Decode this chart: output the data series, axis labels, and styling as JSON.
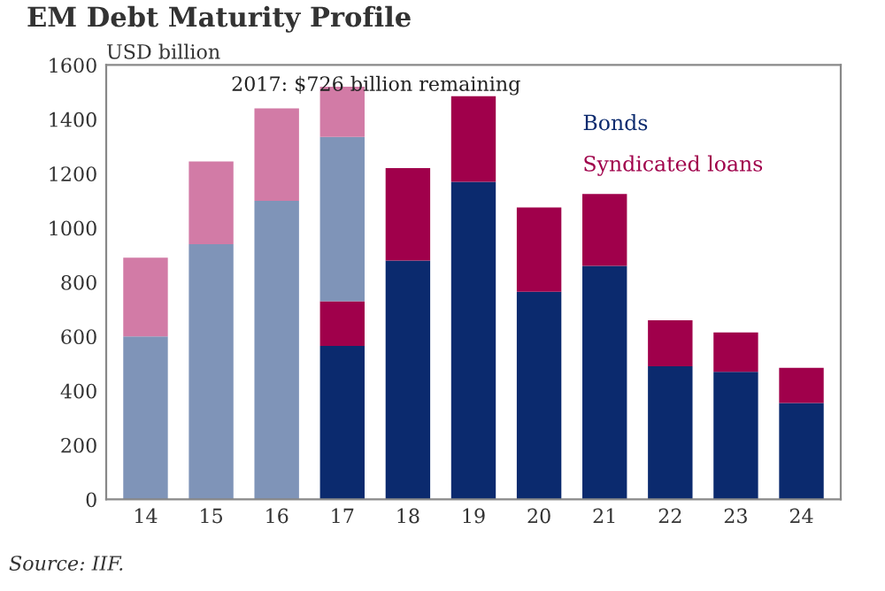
{
  "chart_data": {
    "type": "bar",
    "stacked": true,
    "title": "EM Debt Maturity Profile",
    "ylabel": "USD billion",
    "annotations": [
      "2017: $726 billion remaining",
      "Source: IIF."
    ],
    "categories": [
      "14",
      "15",
      "16",
      "17",
      "18",
      "19",
      "20",
      "21",
      "22",
      "23",
      "24"
    ],
    "series": [
      {
        "name": "Bonds",
        "color": "#0b2a6e",
        "values": [
          null,
          null,
          null,
          565,
          880,
          1170,
          765,
          860,
          490,
          470,
          355
        ]
      },
      {
        "name": "Syndicated loans",
        "color": "#a0004b",
        "values": [
          null,
          null,
          null,
          165,
          340,
          315,
          310,
          265,
          170,
          145,
          130
        ]
      },
      {
        "color": "#7f94b8",
        "values": [
          600,
          940,
          1100,
          605,
          null,
          null,
          null,
          null,
          null,
          null,
          null
        ]
      },
      {
        "color": "#d27ba6",
        "values": [
          290,
          305,
          340,
          185,
          null,
          null,
          null,
          null,
          null,
          null,
          null
        ]
      }
    ],
    "ylim": [
      0,
      1600
    ],
    "yticks": [
      0,
      200,
      400,
      600,
      800,
      1000,
      1200,
      1400,
      1600
    ],
    "grid": false,
    "legend": "top right"
  }
}
